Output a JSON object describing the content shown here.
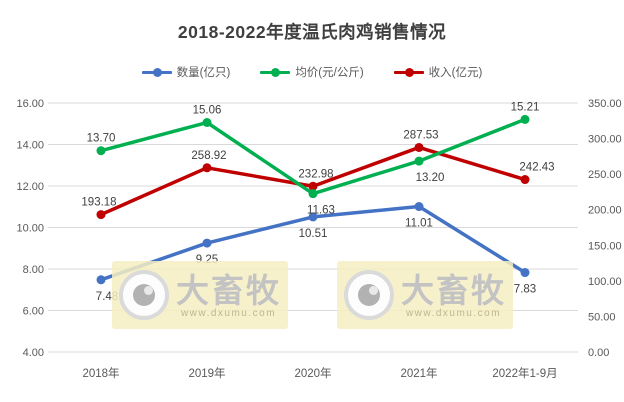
{
  "page": {
    "background": "#ffffff"
  },
  "chart_data": {
    "type": "line",
    "title": "2018-2022年度温氏肉鸡销售情况",
    "categories": [
      "2018年",
      "2019年",
      "2020年",
      "2021年",
      "2022年1-9月"
    ],
    "series": [
      {
        "name": "数量(亿只)",
        "color": "#4472C4",
        "axis": "left",
        "values": [
          7.48,
          9.25,
          10.51,
          11.01,
          7.83
        ],
        "label_side": [
          "below",
          "below",
          "below",
          "below",
          "below"
        ],
        "label_dx": [
          6,
          0,
          0,
          0,
          0
        ]
      },
      {
        "name": "均价(元/公斤)",
        "color": "#00B050",
        "axis": "left",
        "values": [
          13.7,
          15.06,
          11.63,
          13.2,
          15.21
        ],
        "label_side": [
          "above",
          "above",
          "below",
          "below",
          "above"
        ],
        "label_dx": [
          0,
          0,
          8,
          11,
          0
        ]
      },
      {
        "name": "收入(亿元)",
        "color": "#C00000",
        "axis": "right",
        "values": [
          193.18,
          258.92,
          232.98,
          287.53,
          242.43
        ],
        "label_side": [
          "above",
          "above",
          "above",
          "above",
          "above"
        ],
        "label_dx": [
          -2,
          2,
          3,
          2,
          12
        ]
      }
    ],
    "left_axis": {
      "min": 4,
      "max": 16,
      "ticks": [
        "16.00",
        "14.00",
        "12.00",
        "10.00",
        "8.00",
        "6.00",
        "4.00"
      ]
    },
    "right_axis": {
      "min": 0,
      "max": 350,
      "ticks": [
        "350.00",
        "300.00",
        "250.00",
        "200.00",
        "150.00",
        "100.00",
        "50.00",
        "0.00"
      ]
    },
    "grid": "horizontal",
    "legend_position": "top",
    "colors": {
      "gridline": "#D9D9D9",
      "tick_label": "#595959",
      "data_label": "#404040",
      "title": "#3f3f3f"
    }
  },
  "watermark": {
    "icon": "eye-icon",
    "text": "大畜牧",
    "url": "www.dxumu.com",
    "background": "#F6EFC2"
  }
}
